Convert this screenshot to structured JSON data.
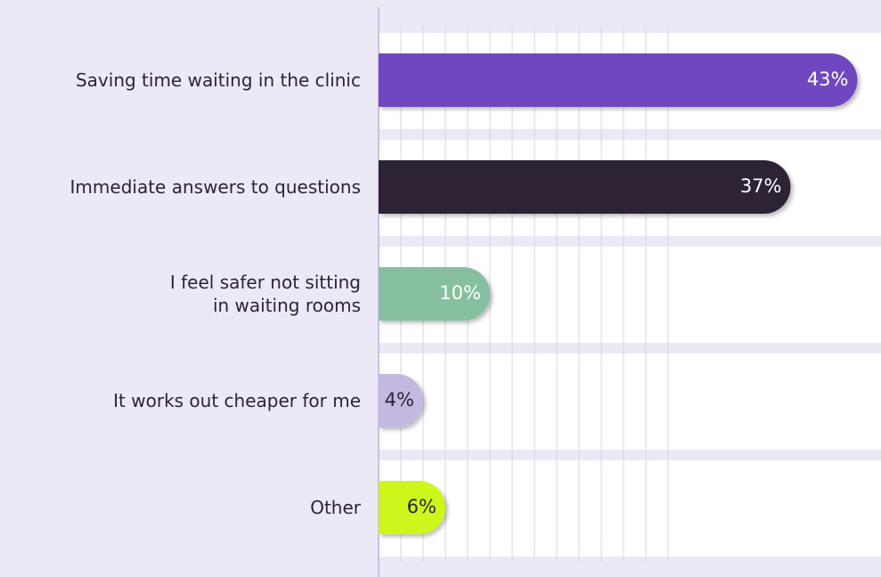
{
  "chart_data": {
    "type": "bar",
    "categories": [
      "Saving time waiting in the clinic",
      "Immediate answers to questions",
      "I feel safer not sitting\nin waiting rooms",
      "It works out cheaper for me",
      "Other"
    ],
    "values": [
      43,
      37,
      10,
      4,
      6
    ],
    "value_labels": [
      "43%",
      "37%",
      "10%",
      "4%",
      "6%"
    ],
    "colors": [
      "#6f47c0",
      "#2e2236",
      "#86bf9f",
      "#c3b8e0",
      "#ccf71e"
    ],
    "label_colors": [
      "#ffffff",
      "#ffffff",
      "#ffffff",
      "#2e2236",
      "#2e2236"
    ],
    "xlim": [
      0,
      45
    ]
  }
}
